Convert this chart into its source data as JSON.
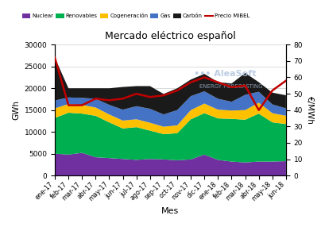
{
  "title": "Mercado eléctrico español",
  "xlabel": "Mes",
  "ylabel_left": "GWh",
  "ylabel_right": "€/MWh",
  "months": [
    "ene-17",
    "feb-17",
    "mar-17",
    "abr-17",
    "may-17",
    "jun-17",
    "jul-17",
    "ago-17",
    "sep-17",
    "oct-17",
    "nov-17",
    "dic-17",
    "ene-18",
    "feb-18",
    "mar-18",
    "abr-18",
    "may-18",
    "jun-18"
  ],
  "nuclear": [
    5000,
    4800,
    5200,
    4200,
    4000,
    3800,
    3600,
    3800,
    3700,
    3500,
    3700,
    4800,
    3600,
    3200,
    3000,
    3200,
    3200,
    3300
  ],
  "renovables": [
    8200,
    9600,
    9000,
    9500,
    8200,
    7000,
    7500,
    6500,
    5800,
    6200,
    9200,
    9500,
    9500,
    9800,
    9800,
    11000,
    9000,
    8500
  ],
  "cogeneracion": [
    2200,
    2000,
    2000,
    1900,
    1800,
    1800,
    1800,
    1800,
    1700,
    1800,
    2100,
    2200,
    2000,
    1900,
    2200,
    2500,
    2100,
    1900
  ],
  "gas": [
    1800,
    1500,
    1600,
    2000,
    2200,
    2500,
    3000,
    3200,
    2800,
    3500,
    3200,
    2800,
    2500,
    2000,
    3500,
    2500,
    2000,
    1700
  ],
  "carbon": [
    9800,
    2100,
    2200,
    2400,
    3800,
    5200,
    4600,
    5200,
    4700,
    5000,
    3800,
    4000,
    3800,
    4200,
    5000,
    2200,
    2700,
    3000
  ],
  "precio_mibel": [
    72,
    43,
    43,
    47,
    46,
    47,
    50,
    48,
    49,
    52,
    57,
    60,
    57,
    54,
    55,
    40,
    52,
    58
  ],
  "colors": {
    "nuclear": "#7030a0",
    "renovables": "#00b050",
    "cogeneracion": "#ffc000",
    "gas": "#4472c4",
    "carbon": "#1a1a1a",
    "precio": "#c00000"
  },
  "ylim_left": [
    0,
    30000
  ],
  "ylim_right": [
    0,
    80
  ],
  "yticks_left": [
    0,
    5000,
    10000,
    15000,
    20000,
    25000,
    30000
  ],
  "yticks_right": [
    0,
    10,
    20,
    30,
    40,
    50,
    60,
    70,
    80
  ]
}
